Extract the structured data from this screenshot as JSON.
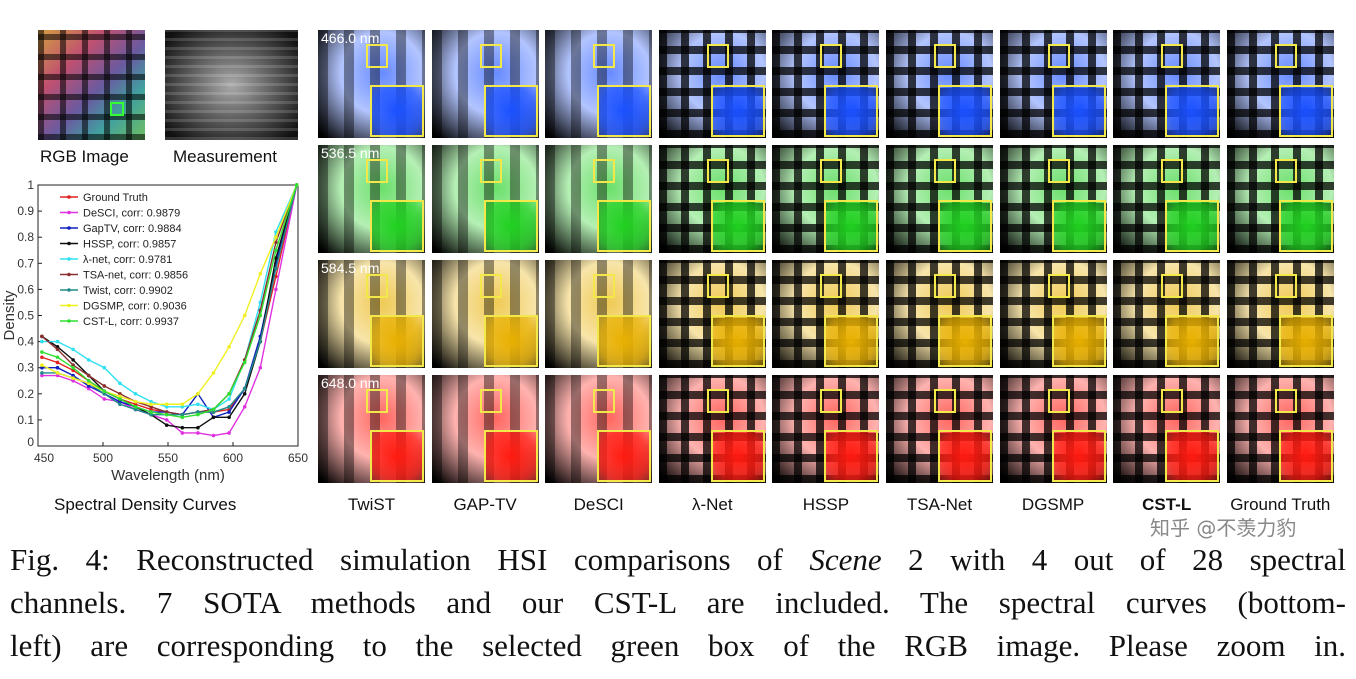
{
  "left_panel": {
    "rgb_label": "RGB Image",
    "measurement_label": "Measurement",
    "chart_caption": "Spectral Density Curves"
  },
  "wavelengths": [
    "466.0 nm",
    "536.5 nm",
    "584.5 nm",
    "648.0 nm"
  ],
  "channel_colors": [
    "#1a50ff",
    "#20d020",
    "#e8b000",
    "#ff1a10"
  ],
  "methods": [
    "TwiST",
    "GAP-TV",
    "DeSCI",
    "λ-Net",
    "HSSP",
    "TSA-Net",
    "DGSMP",
    "CST-L",
    "Ground Truth"
  ],
  "caption": {
    "line1_a": "Fig. 4: Reconstructed simulation HSI comparisons of ",
    "line1_em": "Scene",
    "line1_b": " 2 with 4 out of 28 spectral",
    "line2": "channels. 7 SOTA methods and our CST-L are included. The spectral curves (bottom-",
    "line3": "left) are corresponding to the selected green box of the RGB image. Please zoom in."
  },
  "watermark": "知乎 @不羡力豹",
  "chart_data": {
    "type": "line",
    "title": "",
    "xlabel": "Wavelength (nm)",
    "ylabel": "Density",
    "xlim": [
      450,
      650
    ],
    "ylim": [
      0,
      1
    ],
    "xticks": [
      450,
      500,
      550,
      600,
      650
    ],
    "yticks": [
      0,
      0.1,
      0.2,
      0.3,
      0.4,
      0.5,
      0.6,
      0.7,
      0.8,
      0.9,
      1
    ],
    "grid": false,
    "legend_position": "top-left",
    "x": [
      453,
      465,
      477,
      489,
      501,
      513,
      525,
      537,
      549,
      561,
      573,
      585,
      597,
      609,
      621,
      633,
      649
    ],
    "series": [
      {
        "name": "Ground Truth",
        "color": "#e02020",
        "values": [
          0.34,
          0.32,
          0.29,
          0.25,
          0.21,
          0.18,
          0.16,
          0.14,
          0.13,
          0.12,
          0.13,
          0.13,
          0.14,
          0.22,
          0.4,
          0.65,
          1.0
        ]
      },
      {
        "name": "DeSCI, corr: 0.9879",
        "color": "#e030e0",
        "values": [
          0.27,
          0.27,
          0.25,
          0.22,
          0.18,
          0.17,
          0.14,
          0.12,
          0.1,
          0.05,
          0.05,
          0.04,
          0.05,
          0.15,
          0.3,
          0.6,
          1.0
        ]
      },
      {
        "name": "GapTV, corr: 0.9884",
        "color": "#1020c0",
        "values": [
          0.3,
          0.3,
          0.27,
          0.23,
          0.2,
          0.17,
          0.15,
          0.13,
          0.13,
          0.12,
          0.2,
          0.11,
          0.13,
          0.22,
          0.42,
          0.7,
          1.0
        ]
      },
      {
        "name": "HSSP, corr: 0.9857",
        "color": "#101010",
        "values": [
          0.42,
          0.38,
          0.33,
          0.27,
          0.21,
          0.18,
          0.15,
          0.12,
          0.08,
          0.07,
          0.07,
          0.11,
          0.11,
          0.2,
          0.4,
          0.72,
          1.0
        ]
      },
      {
        "name": "λ-net, corr: 0.9781",
        "color": "#30e0f0",
        "values": [
          0.4,
          0.4,
          0.37,
          0.33,
          0.3,
          0.24,
          0.2,
          0.17,
          0.15,
          0.15,
          0.16,
          0.14,
          0.18,
          0.33,
          0.55,
          0.82,
          1.0
        ]
      },
      {
        "name": "TSA-net, corr: 0.9856",
        "color": "#8a3030",
        "values": [
          0.42,
          0.37,
          0.31,
          0.27,
          0.23,
          0.2,
          0.17,
          0.15,
          0.13,
          0.12,
          0.13,
          0.14,
          0.2,
          0.33,
          0.52,
          0.78,
          1.0
        ]
      },
      {
        "name": "Twist, corr: 0.9902",
        "color": "#208a8a",
        "values": [
          0.28,
          0.28,
          0.26,
          0.24,
          0.2,
          0.16,
          0.14,
          0.12,
          0.12,
          0.12,
          0.13,
          0.13,
          0.15,
          0.22,
          0.4,
          0.68,
          1.0
        ]
      },
      {
        "name": "DGSMP, corr: 0.9036",
        "color": "#f0f020",
        "values": [
          0.31,
          0.28,
          0.26,
          0.24,
          0.21,
          0.19,
          0.17,
          0.16,
          0.16,
          0.16,
          0.2,
          0.28,
          0.38,
          0.5,
          0.66,
          0.8,
          1.0
        ]
      },
      {
        "name": "CST-L, corr: 0.9937",
        "color": "#30e030",
        "values": [
          0.36,
          0.34,
          0.3,
          0.25,
          0.21,
          0.18,
          0.15,
          0.13,
          0.12,
          0.11,
          0.12,
          0.14,
          0.2,
          0.32,
          0.5,
          0.75,
          1.0
        ]
      }
    ]
  }
}
